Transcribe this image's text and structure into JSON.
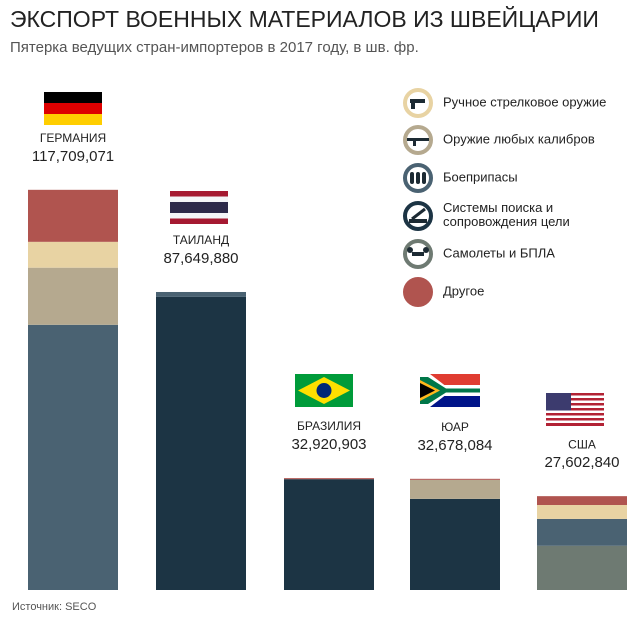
{
  "chart_data": {
    "type": "stacked-bar",
    "title": "ЭКСПОРТ ВОЕННЫХ МАТЕРИАЛОВ ИЗ ШВЕЙЦАРИИ",
    "subtitle": "Пятерка ведущих стран-импортеров в 2017 году, в шв. фр.",
    "source": "Источник: SECO",
    "categories": [
      "ГЕРМАНИЯ",
      "ТАИЛАНД",
      "БРАЗИЛИЯ",
      "ЮАР",
      "США"
    ],
    "values": [
      117709071,
      87649880,
      32920903,
      32678084,
      27602840
    ],
    "value_labels": [
      "117,709,071",
      "87,649,880",
      "32,920,903",
      "32,678,084",
      "27,602,840"
    ],
    "series": [
      {
        "name": "Ручное стрелковое оружие",
        "color": "#e8d3a3",
        "values": [
          7600000,
          0,
          0,
          0,
          4100000
        ]
      },
      {
        "name": "Оружие любых калибров",
        "color": "#b5a98f",
        "values": [
          16800000,
          0,
          0,
          5600000,
          0
        ]
      },
      {
        "name": "Боеприпасы",
        "color": "#4a6272",
        "values": [
          78000000,
          1450000,
          0,
          0,
          7900000
        ]
      },
      {
        "name": "Системы поиска и сопровождения цели",
        "color": "#1c3444",
        "values": [
          0,
          86200000,
          32600000,
          26800000,
          0
        ]
      },
      {
        "name": "Самолеты и БПЛА",
        "color": "#6e7a72",
        "values": [
          0,
          0,
          0,
          0,
          13000000
        ]
      },
      {
        "name": "Другое",
        "color": "#b0544f",
        "values": [
          15300000,
          0,
          300000,
          300000,
          2600000
        ]
      }
    ],
    "ylim": [
      0,
      120000000
    ]
  }
}
